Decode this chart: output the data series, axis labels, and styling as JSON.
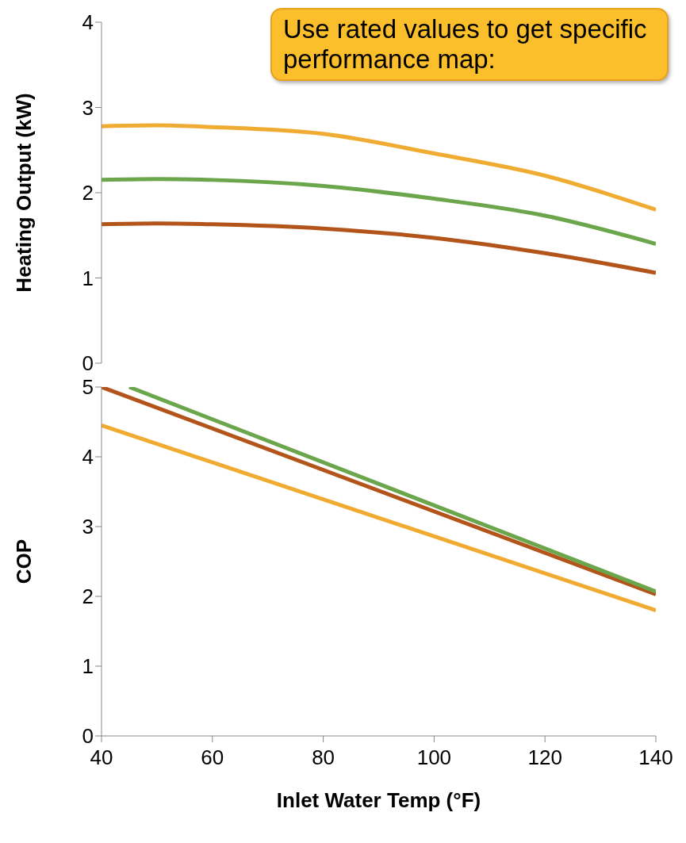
{
  "chart_data": [
    {
      "type": "line",
      "ylabel": "Heating Output (kW)",
      "xlim": [
        40,
        140
      ],
      "ylim": [
        0,
        4
      ],
      "yticks": [
        0,
        1,
        2,
        3,
        4
      ],
      "tick_labels": "y",
      "line_style": "solid",
      "marker": "none",
      "annotations": [
        "Use rated values to get specific  performance map:"
      ],
      "series": [
        {
          "color": "#f0ac32",
          "x": [
            40,
            50,
            60,
            80,
            100,
            120,
            140
          ],
          "values": [
            2.78,
            2.79,
            2.77,
            2.69,
            2.46,
            2.2,
            1.8
          ]
        },
        {
          "color": "#6ca64c",
          "x": [
            40,
            50,
            60,
            80,
            100,
            120,
            140
          ],
          "values": [
            2.15,
            2.16,
            2.15,
            2.08,
            1.93,
            1.73,
            1.4
          ]
        },
        {
          "color": "#b3551b",
          "x": [
            40,
            50,
            60,
            80,
            100,
            120,
            140
          ],
          "values": [
            1.63,
            1.64,
            1.63,
            1.58,
            1.47,
            1.29,
            1.06
          ]
        }
      ]
    },
    {
      "type": "line",
      "xlabel": "Inlet Water Temp (°F)",
      "ylabel": "COP",
      "xlim": [
        40,
        140
      ],
      "xticks": [
        40,
        60,
        80,
        100,
        120,
        140
      ],
      "ylim": [
        0,
        5
      ],
      "yticks": [
        0,
        1,
        2,
        3,
        4,
        5
      ],
      "line_style": "solid",
      "marker": "none",
      "series": [
        {
          "color": "#f0ac32",
          "x": [
            40,
            140
          ],
          "values": [
            4.45,
            1.8
          ]
        },
        {
          "color": "#b3551b",
          "x": [
            40,
            140
          ],
          "values": [
            5.0,
            2.03
          ]
        },
        {
          "color": "#6ca64c",
          "x": [
            45,
            140
          ],
          "values": [
            5.0,
            2.07
          ]
        }
      ]
    }
  ]
}
